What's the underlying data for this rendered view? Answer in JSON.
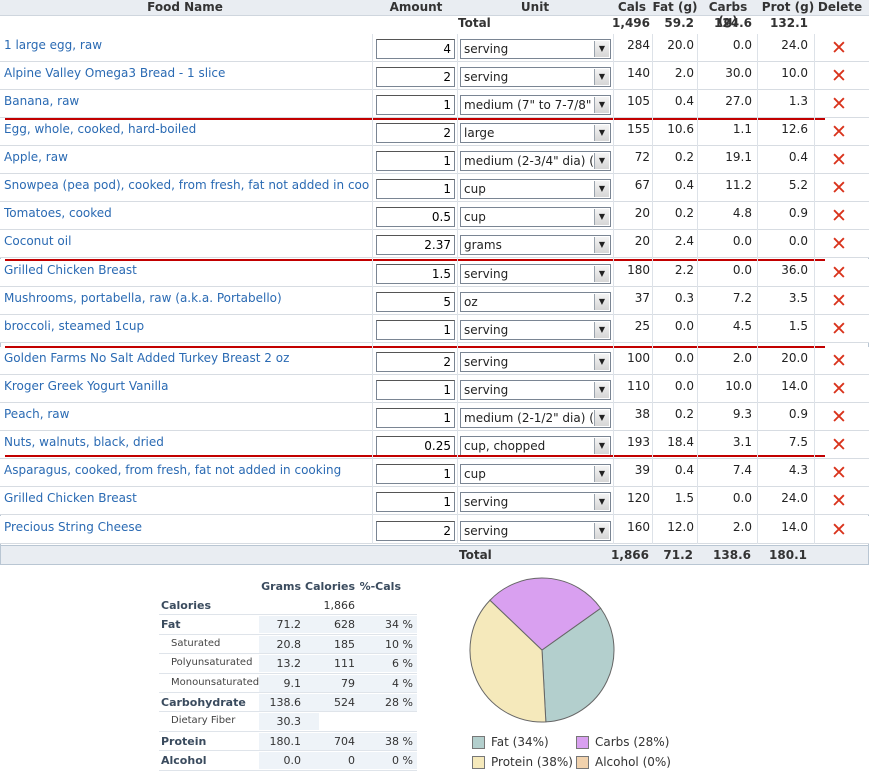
{
  "header": {
    "food_name": "Food Name",
    "amount": "Amount",
    "unit": "Unit",
    "cals": "Cals",
    "fat": "Fat (g)",
    "carbs": "Carbs (g)",
    "prot": "Prot (g)",
    "delete": "Delete"
  },
  "totals_top": {
    "label": "Total",
    "cals": "1,496",
    "fat": "59.2",
    "carbs": "124.6",
    "prot": "132.1"
  },
  "totals_bottom": {
    "label": "Total",
    "cals": "1,866",
    "fat": "71.2",
    "carbs": "138.6",
    "prot": "180.1"
  },
  "rows": [
    {
      "name": "1 large egg, raw",
      "amount": "4",
      "unit": "serving",
      "cals": "284",
      "fat": "20.0",
      "carbs": "0.0",
      "prot": "24.0"
    },
    {
      "name": "Alpine Valley Omega3 Bread - 1 slice",
      "amount": "2",
      "unit": "serving",
      "cals": "140",
      "fat": "2.0",
      "carbs": "30.0",
      "prot": "10.0"
    },
    {
      "name": "Banana, raw",
      "amount": "1",
      "unit": "medium (7\" to 7-7/8\" lo",
      "cals": "105",
      "fat": "0.4",
      "carbs": "27.0",
      "prot": "1.3"
    },
    {
      "name": "Egg, whole, cooked, hard-boiled",
      "amount": "2",
      "unit": "large",
      "cals": "155",
      "fat": "10.6",
      "carbs": "1.1",
      "prot": "12.6"
    },
    {
      "name": "Apple, raw",
      "amount": "1",
      "unit": "medium (2-3/4\" dia) (a",
      "cals": "72",
      "fat": "0.2",
      "carbs": "19.1",
      "prot": "0.4"
    },
    {
      "name": "Snowpea (pea pod), cooked, from fresh, fat not added in cook...",
      "amount": "1",
      "unit": "cup",
      "cals": "67",
      "fat": "0.4",
      "carbs": "11.2",
      "prot": "5.2"
    },
    {
      "name": "Tomatoes, cooked",
      "amount": "0.5",
      "unit": "cup",
      "cals": "20",
      "fat": "0.2",
      "carbs": "4.8",
      "prot": "0.9"
    },
    {
      "name": "Coconut oil",
      "amount": "2.37",
      "unit": "grams",
      "cals": "20",
      "fat": "2.4",
      "carbs": "0.0",
      "prot": "0.0"
    },
    {
      "name": "Grilled Chicken Breast",
      "amount": "1.5",
      "unit": "serving",
      "cals": "180",
      "fat": "2.2",
      "carbs": "0.0",
      "prot": "36.0"
    },
    {
      "name": "Mushrooms, portabella, raw (a.k.a. Portabello)",
      "amount": "5",
      "unit": "oz",
      "cals": "37",
      "fat": "0.3",
      "carbs": "7.2",
      "prot": "3.5"
    },
    {
      "name": "broccoli, steamed 1cup",
      "amount": "1",
      "unit": "serving",
      "cals": "25",
      "fat": "0.0",
      "carbs": "4.5",
      "prot": "1.5"
    },
    {
      "name": "Golden Farms No Salt Added Turkey Breast 2 oz",
      "amount": "2",
      "unit": "serving",
      "cals": "100",
      "fat": "0.0",
      "carbs": "2.0",
      "prot": "20.0"
    },
    {
      "name": "Kroger Greek Yogurt Vanilla",
      "amount": "1",
      "unit": "serving",
      "cals": "110",
      "fat": "0.0",
      "carbs": "10.0",
      "prot": "14.0"
    },
    {
      "name": "Peach, raw",
      "amount": "1",
      "unit": "medium (2-1/2\" dia) (a",
      "cals": "38",
      "fat": "0.2",
      "carbs": "9.3",
      "prot": "0.9"
    },
    {
      "name": "Nuts, walnuts, black, dried",
      "amount": "0.25",
      "unit": "cup, chopped",
      "cals": "193",
      "fat": "18.4",
      "carbs": "3.1",
      "prot": "7.5"
    },
    {
      "name": "Asparagus, cooked, from fresh, fat not added in cooking",
      "amount": "1",
      "unit": "cup",
      "cals": "39",
      "fat": "0.4",
      "carbs": "7.4",
      "prot": "4.3"
    },
    {
      "name": "Grilled Chicken Breast",
      "amount": "1",
      "unit": "serving",
      "cals": "120",
      "fat": "1.5",
      "carbs": "0.0",
      "prot": "24.0"
    },
    {
      "name": "Precious String Cheese",
      "amount": "2",
      "unit": "serving",
      "cals": "160",
      "fat": "12.0",
      "carbs": "2.0",
      "prot": "14.0"
    }
  ],
  "summary": {
    "headers": {
      "grams": "Grams",
      "calories": "Calories",
      "pct": "%-Cals"
    },
    "rows": [
      {
        "label": "Calories",
        "grams": "",
        "calories": "1,866",
        "pct": "",
        "sub": false
      },
      {
        "label": "Fat",
        "grams": "71.2",
        "calories": "628",
        "pct": "34 %",
        "sub": false
      },
      {
        "label": "Saturated",
        "grams": "20.8",
        "calories": "185",
        "pct": "10 %",
        "sub": true
      },
      {
        "label": "Polyunsaturated",
        "grams": "13.2",
        "calories": "111",
        "pct": "6 %",
        "sub": true
      },
      {
        "label": "Monounsaturated",
        "grams": "9.1",
        "calories": "79",
        "pct": "4 %",
        "sub": true
      },
      {
        "label": "Carbohydrate",
        "grams": "138.6",
        "calories": "524",
        "pct": "28 %",
        "sub": false
      },
      {
        "label": "Dietary Fiber",
        "grams": "30.3",
        "calories": "",
        "pct": "",
        "sub": true
      },
      {
        "label": "Protein",
        "grams": "180.1",
        "calories": "704",
        "pct": "38 %",
        "sub": false
      },
      {
        "label": "Alcohol",
        "grams": "0.0",
        "calories": "0",
        "pct": "0 %",
        "sub": false
      }
    ]
  },
  "chart_data": {
    "type": "pie",
    "title": "",
    "slices": [
      {
        "label": "Fat (34%)",
        "value": 34,
        "color": "#b3cfcd"
      },
      {
        "label": "Carbs (28%)",
        "value": 28,
        "color": "#d9a0f0"
      },
      {
        "label": "Protein (38%)",
        "value": 38,
        "color": "#f5e9bb"
      },
      {
        "label": "Alcohol (0%)",
        "value": 0,
        "color": "#f1d2ad"
      }
    ]
  },
  "icons": {
    "delete": "delete-x-icon",
    "dropdown": "chevron-down-icon"
  },
  "colors": {
    "food_link": "#2a6ab3",
    "delete_x": "#d9331c",
    "separator": "#c20000",
    "header_bg": "#e9edf2"
  }
}
